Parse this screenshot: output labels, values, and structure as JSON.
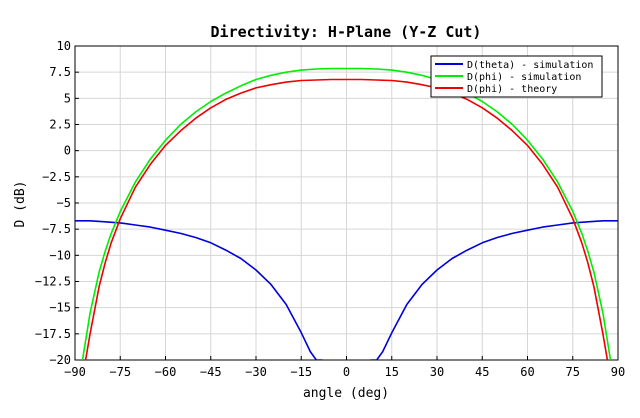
{
  "chart_data": {
    "type": "line",
    "title": "Directivity: H-Plane (Y-Z Cut)",
    "xlabel": "angle (deg)",
    "ylabel": "D (dB)",
    "xlim": [
      -90,
      90
    ],
    "ylim": [
      -20,
      10
    ],
    "xticks": [
      -90,
      -75,
      -60,
      -45,
      -30,
      -15,
      0,
      15,
      30,
      45,
      60,
      75,
      90
    ],
    "yticks": [
      10,
      7.5,
      5,
      2.5,
      0,
      -2.5,
      -5,
      -7.5,
      -10,
      -12.5,
      -15,
      -17.5,
      -20
    ],
    "grid": true,
    "legend_position": "top-right",
    "series": [
      {
        "name": "D(theta) - simulation",
        "color": "#0000dd",
        "x": [
          -90,
          -85,
          -80,
          -75,
          -70,
          -65,
          -60,
          -55,
          -50,
          -45,
          -40,
          -35,
          -30,
          -25,
          -20,
          -15,
          -12,
          -10,
          -8,
          8,
          10,
          12,
          15,
          20,
          25,
          30,
          35,
          40,
          45,
          50,
          55,
          60,
          65,
          70,
          75,
          80,
          85,
          90
        ],
        "y": [
          -6.7,
          -6.7,
          -6.8,
          -6.9,
          -7.1,
          -7.3,
          -7.6,
          -7.9,
          -8.3,
          -8.8,
          -9.5,
          -10.3,
          -11.4,
          -12.8,
          -14.7,
          -17.4,
          -19.2,
          -20,
          -20,
          -20,
          -20,
          -19.2,
          -17.4,
          -14.7,
          -12.8,
          -11.4,
          -10.3,
          -9.5,
          -8.8,
          -8.3,
          -7.9,
          -7.6,
          -7.3,
          -7.1,
          -6.9,
          -6.8,
          -6.7,
          -6.7
        ]
      },
      {
        "name": "D(phi) - simulation",
        "color": "#00ee00",
        "x": [
          -87.5,
          -85,
          -82,
          -80,
          -78,
          -75,
          -70,
          -65,
          -60,
          -55,
          -50,
          -45,
          -40,
          -35,
          -30,
          -25,
          -20,
          -15,
          -10,
          -5,
          0,
          5,
          10,
          15,
          20,
          25,
          30,
          35,
          40,
          45,
          50,
          55,
          60,
          65,
          70,
          75,
          78,
          80,
          82,
          85,
          87.5
        ],
        "y": [
          -20,
          -15.5,
          -11.6,
          -9.6,
          -7.9,
          -5.8,
          -3.0,
          -0.8,
          1.0,
          2.5,
          3.7,
          4.7,
          5.5,
          6.2,
          6.8,
          7.2,
          7.5,
          7.7,
          7.8,
          7.85,
          7.85,
          7.85,
          7.8,
          7.7,
          7.5,
          7.2,
          6.8,
          6.2,
          5.5,
          4.7,
          3.7,
          2.5,
          1.0,
          -0.8,
          -3.0,
          -5.8,
          -7.9,
          -9.6,
          -11.6,
          -15.5,
          -20
        ]
      },
      {
        "name": "D(phi) - theory",
        "color": "#ee0000",
        "x": [
          -86.5,
          -85,
          -82,
          -80,
          -78,
          -75,
          -70,
          -65,
          -60,
          -55,
          -50,
          -45,
          -40,
          -35,
          -30,
          -25,
          -20,
          -15,
          -10,
          -5,
          0,
          5,
          10,
          15,
          20,
          25,
          30,
          35,
          40,
          45,
          50,
          55,
          60,
          65,
          70,
          75,
          78,
          80,
          82,
          85,
          86.5
        ],
        "y": [
          -20,
          -17.5,
          -13.0,
          -10.7,
          -8.8,
          -6.5,
          -3.5,
          -1.3,
          0.5,
          1.9,
          3.1,
          4.1,
          4.9,
          5.5,
          6.0,
          6.3,
          6.55,
          6.7,
          6.75,
          6.8,
          6.8,
          6.8,
          6.75,
          6.7,
          6.55,
          6.3,
          6.0,
          5.5,
          4.9,
          4.1,
          3.1,
          1.9,
          0.5,
          -1.3,
          -3.5,
          -6.5,
          -8.8,
          -10.7,
          -13.0,
          -17.5,
          -20
        ]
      }
    ]
  }
}
